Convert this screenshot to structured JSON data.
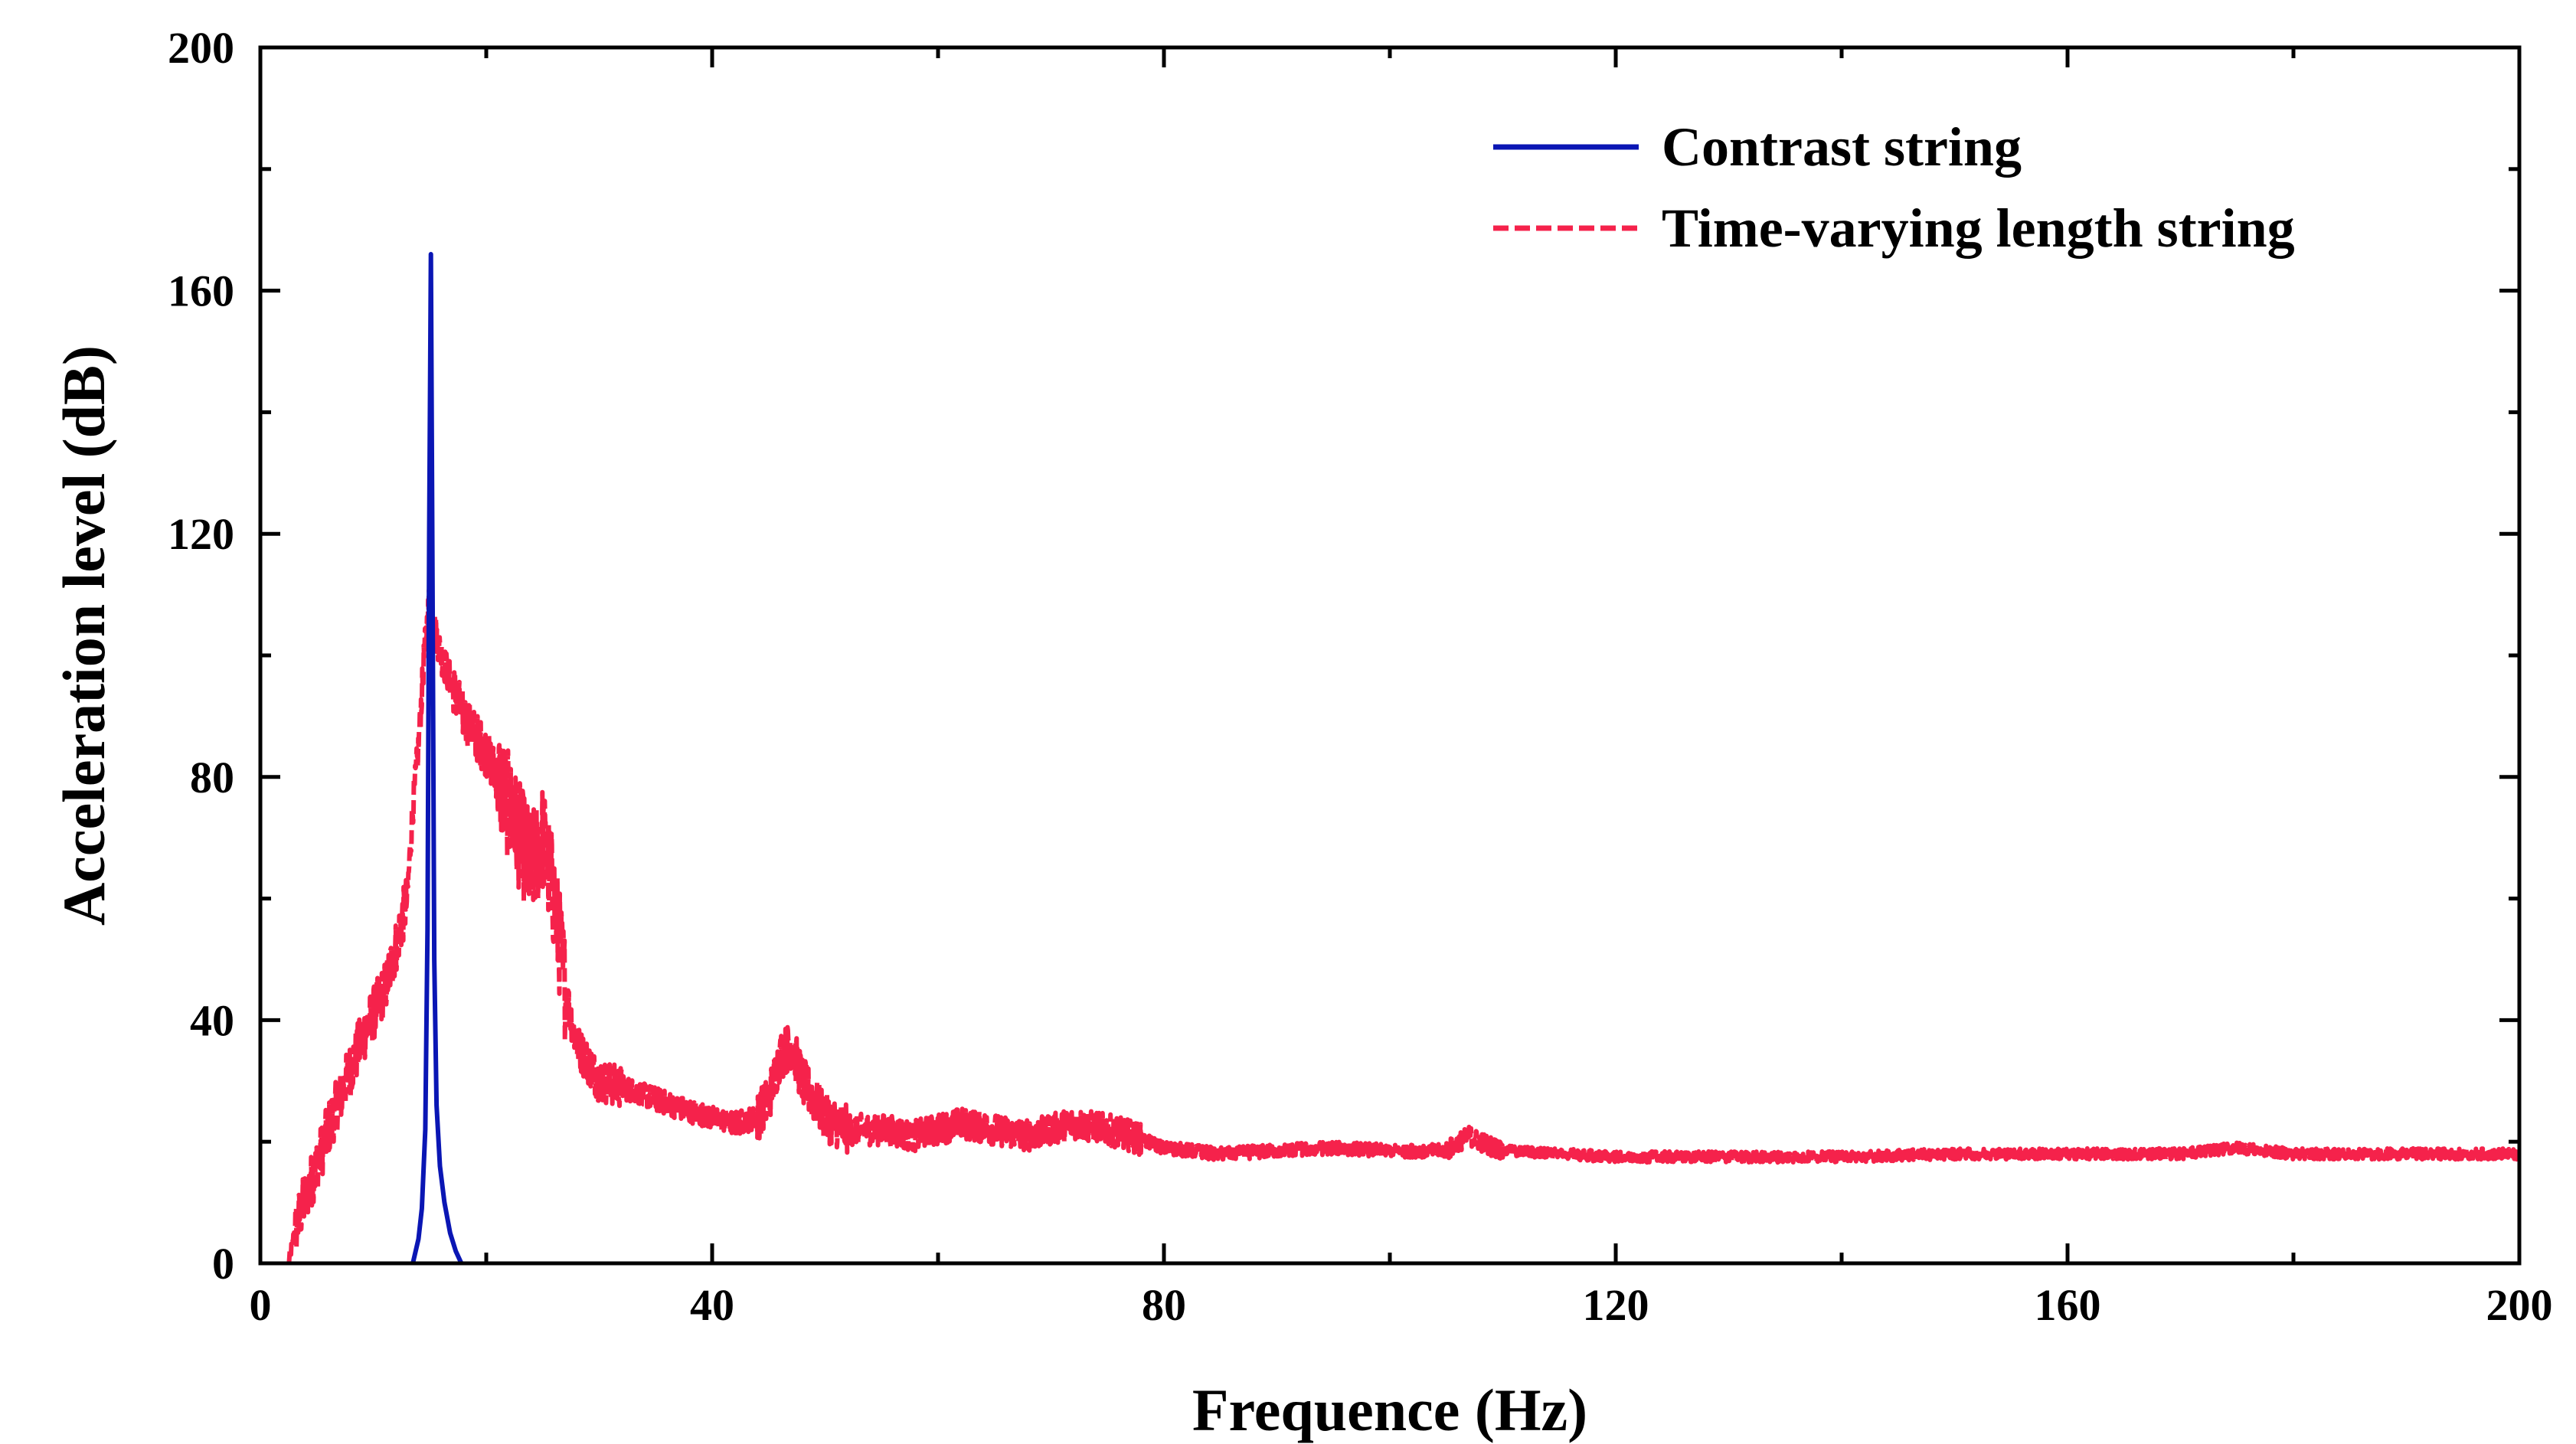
{
  "chart_data": {
    "type": "line",
    "title": "",
    "xlabel": "Frequence (Hz)",
    "ylabel": "Acceleration level (dB)",
    "xlim": [
      0,
      200
    ],
    "ylim": [
      0,
      200
    ],
    "xticks": [
      0,
      40,
      80,
      120,
      160,
      200
    ],
    "yticks": [
      0,
      40,
      80,
      120,
      160,
      200
    ],
    "x_tick_labels": [
      "0",
      "40",
      "80",
      "120",
      "160",
      "200"
    ],
    "y_tick_labels": [
      "0",
      "40",
      "80",
      "120",
      "160",
      "200"
    ],
    "grid": false,
    "legend_position": "top-right",
    "series": [
      {
        "name": "Contrast string",
        "color": "#0a16b4",
        "style": "solid",
        "x": [
          13.5,
          14.0,
          14.3,
          14.6,
          14.8,
          14.95,
          15.1,
          15.25,
          15.4,
          15.6,
          15.9,
          16.3,
          16.8,
          17.3,
          17.8
        ],
        "y": [
          0,
          4,
          9,
          22,
          55,
          120,
          166,
          110,
          50,
          26,
          16,
          10,
          5,
          2,
          0
        ]
      },
      {
        "name": "Time-varying length string",
        "color": "#f5224b",
        "style": "dashed",
        "x": [
          2.5,
          3.0,
          4.0,
          5.0,
          6.0,
          7.0,
          8.0,
          9.0,
          10.0,
          11.0,
          12.0,
          13.0,
          13.5,
          14.0,
          14.5,
          15.0,
          15.5,
          16.0,
          17.0,
          18.0,
          19.0,
          20.0,
          21.0,
          22.0,
          23.0,
          24.0,
          25.0,
          26.0,
          27.0,
          28.0,
          29.0,
          30.0,
          32.0,
          35.0,
          38.0,
          40.0,
          42.0,
          44.0,
          45.0,
          46.0,
          47.0,
          48.0,
          49.0,
          50.0,
          52.0,
          55.0,
          58.0,
          60.0,
          62.0,
          65.0,
          68.0,
          70.0,
          72.0,
          75.0,
          77.0,
          80.0,
          85.0,
          90.0,
          95.0,
          100.0,
          105.0,
          107.0,
          108.0,
          110.0,
          115.0,
          120.0,
          125.0,
          130.0,
          140.0,
          150.0,
          160.0,
          170.0,
          175.0,
          180.0,
          190.0,
          200.0
        ],
        "y": [
          0,
          5,
          11,
          16,
          22,
          27,
          32,
          37,
          41,
          45,
          52,
          60,
          75,
          85,
          100,
          110,
          104,
          100,
          95,
          90,
          87,
          84,
          80,
          75,
          70,
          65,
          70,
          60,
          45,
          36,
          33,
          30,
          29,
          27,
          25,
          24,
          23,
          24,
          27,
          34,
          36,
          30,
          27,
          24,
          22,
          22,
          21,
          22,
          23,
          22,
          21,
          22,
          23,
          22,
          21,
          19,
          18,
          18.5,
          19,
          18.5,
          18.5,
          21,
          20,
          18.5,
          18,
          17.5,
          17.5,
          17.5,
          17.5,
          18,
          18,
          18,
          19,
          18,
          18,
          18
        ]
      }
    ]
  }
}
